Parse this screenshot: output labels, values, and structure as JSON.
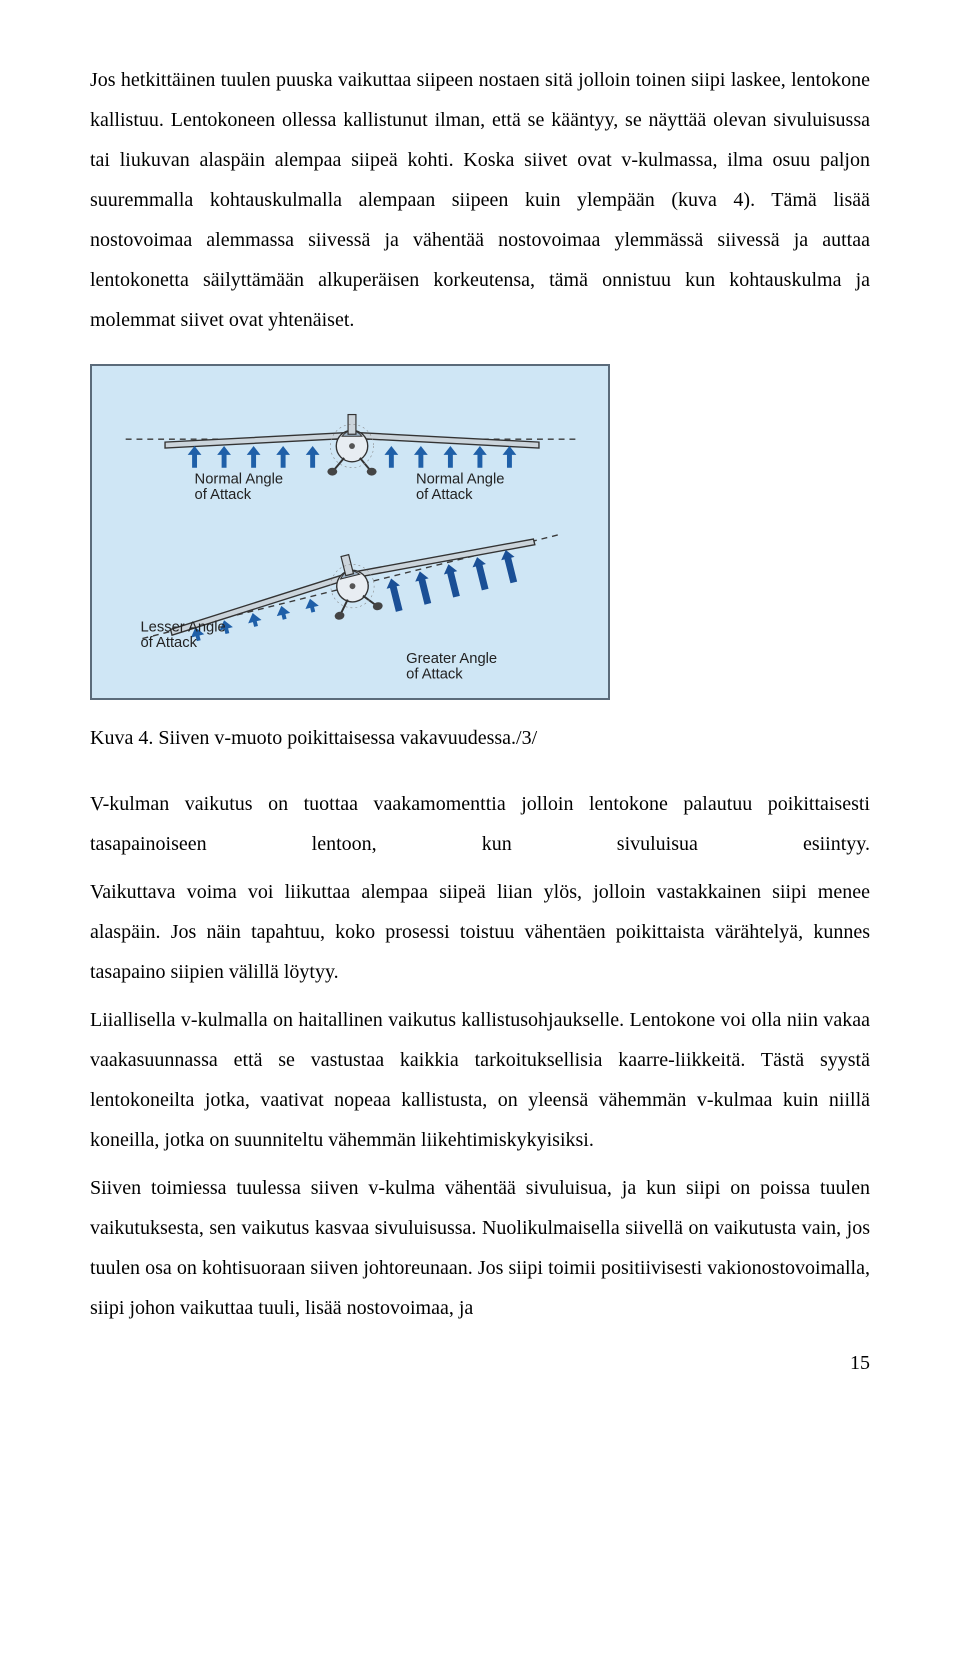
{
  "para1": "Jos hetkittäinen tuulen puuska vaikuttaa siipeen nostaen sitä jolloin toinen siipi laskee, lentokone kallistuu. Lentokoneen ollessa kallistunut ilman, että se kääntyy, se näyttää olevan sivuluisussa tai liukuvan alaspäin alempaa siipeä kohti. Koska siivet ovat v-kulmassa, ilma osuu paljon suuremmalla kohtauskulmalla alempaan siipeen kuin ylempään (kuva 4). Tämä lisää nostovoimaa alemmassa siivessä ja vähentää nostovoimaa ylemmässä siivessä ja auttaa lentokonetta säilyttämään alkuperäisen korkeutensa, tämä onnistuu kun kohtauskulma ja molemmat siivet ovat yhtenäiset.",
  "figure": {
    "bg_color": "#cfe6f5",
    "border_color": "#5b6b7a",
    "top": {
      "labels": {
        "left": "Normal Angle\nof Attack",
        "right": "Normal Angle\nof Attack"
      },
      "arrow_color": "#1f5fa8",
      "wing_color": "#cbd4db",
      "wing_stroke": "#333333",
      "body_color": "#e8edf2",
      "wheel_color": "#444444",
      "prop_color": "#555555",
      "dash_color": "#3a3a3a",
      "tilt_deg": 0
    },
    "bottom": {
      "labels": {
        "left": "Lesser Angle\nof Attack",
        "right": "Greater Angle\nof Attack"
      },
      "arrow_color": "#1f5fa8",
      "arrow_color_strong": "#1a4f96",
      "wing_color": "#cbd4db",
      "wing_stroke": "#333333",
      "body_color": "#e8edf2",
      "wheel_color": "#444444",
      "prop_color": "#555555",
      "dash_color": "#3a3a3a",
      "tilt_deg": -14
    }
  },
  "caption": "Kuva 4. Siiven v-muoto poikittaisessa vakavuudessa./3/",
  "para2": "V-kulman vaikutus on tuottaa vaakamomenttia jolloin lentokone palautuu poikittaisesti tasapainoiseen lentoon, kun sivuluisua esiintyy.",
  "para3": "Vaikuttava voima voi liikuttaa alempaa siipeä liian ylös, jolloin vastakkainen siipi menee alaspäin. Jos näin tapahtuu, koko prosessi toistuu vähentäen poikittaista värähtelyä, kunnes tasapaino siipien välillä löytyy.",
  "para4": "Liiallisella v-kulmalla on haitallinen vaikutus kallistusohjaukselle. Lentokone voi olla niin vakaa vaakasuunnassa että se vastustaa kaikkia tarkoituksellisia kaarre-liikkeitä. Tästä syystä lentokoneilta jotka, vaativat nopeaa kallistusta, on yleensä vähemmän v-kulmaa kuin niillä koneilla, jotka on suunniteltu vähemmän liikehtimiskykyisiksi.",
  "para5": "Siiven toimiessa tuulessa siiven v-kulma vähentää sivuluisua, ja kun siipi on poissa tuulen vaikutuksesta, sen vaikutus kasvaa sivuluisussa. Nuolikulmaisella siivellä on vaikutusta vain, jos tuulen osa on kohtisuoraan siiven johtoreunaan. Jos siipi toimii positiivisesti vakionostovoimalla, siipi johon vaikuttaa tuuli, lisää nostovoimaa, ja",
  "pagenum": "15"
}
